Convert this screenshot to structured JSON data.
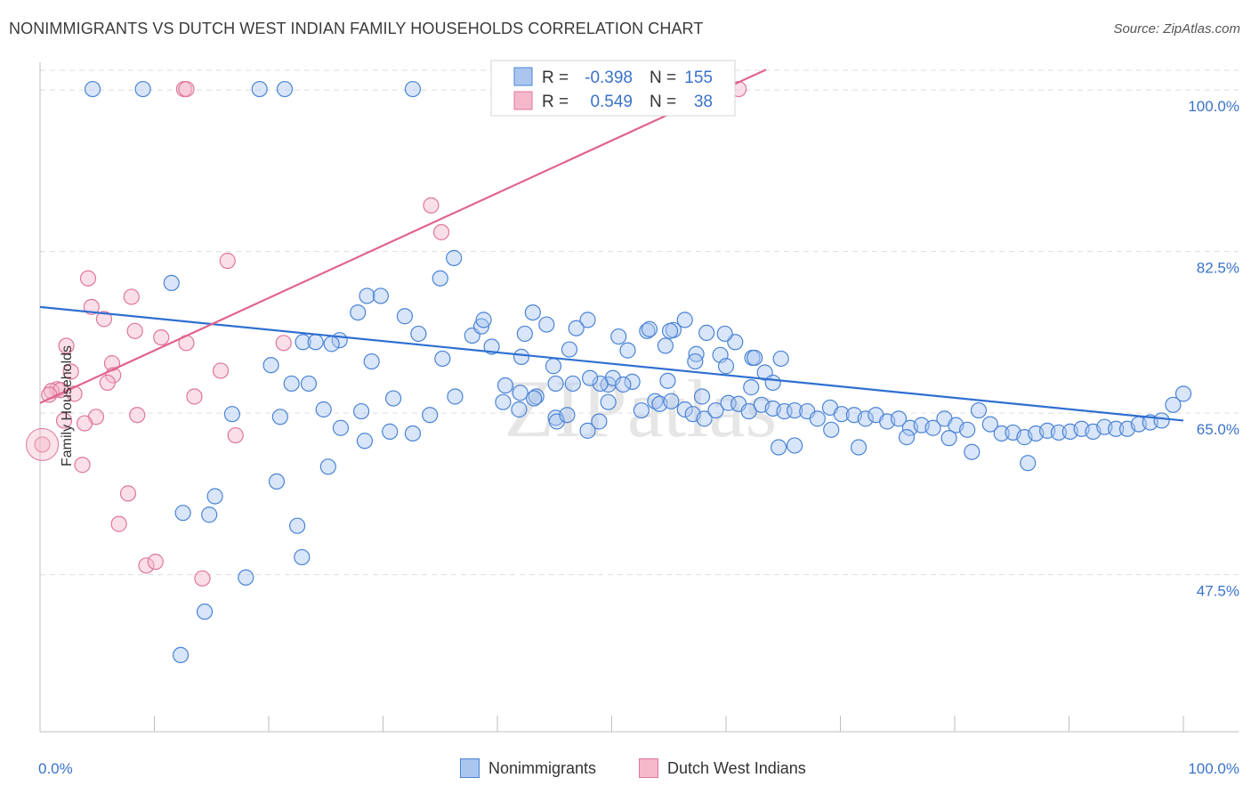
{
  "title": "NONIMMIGRANTS VS DUTCH WEST INDIAN FAMILY HOUSEHOLDS CORRELATION CHART",
  "source": "Source: ZipAtlas.com",
  "watermark": "ZIPatlas",
  "colors": {
    "blue": "#4a84d6",
    "blue_fill": "#aac6ef",
    "blue_line": "#2f6fd1",
    "pink": "#e0769a",
    "pink_fill": "#f5b8cb",
    "pink_line": "#e0648c",
    "axis_text": "#3a73c9",
    "grid": "#dddddd"
  },
  "legend": {
    "rows": [
      {
        "r_label": "R =",
        "r_value": "-0.398",
        "n_label": "N =",
        "n_value": "155"
      },
      {
        "r_label": "R =",
        "r_value": "0.549",
        "n_label": "N =",
        "n_value": "38"
      }
    ]
  },
  "bottom_legend": [
    "Nonimmigrants",
    "Dutch West Indians"
  ],
  "chart_data": {
    "type": "scatter",
    "title": "NONIMMIGRANTS VS DUTCH WEST INDIAN FAMILY HOUSEHOLDS CORRELATION CHART",
    "xlabel": "",
    "ylabel": "Family Households",
    "xlim": [
      0,
      100
    ],
    "ylim": [
      30.5,
      103
    ],
    "x_tick_labels": [
      "0.0%",
      "100.0%"
    ],
    "y_ticks": [
      100,
      82.5,
      65,
      47.5
    ],
    "y_tick_labels": [
      "100.0%",
      "82.5%",
      "65.0%",
      "47.5%"
    ],
    "series": [
      {
        "name": "Nonimmigrants",
        "r": -0.398,
        "n": 155,
        "trend": {
          "x": [
            0,
            100
          ],
          "y": [
            76.5,
            64.2
          ]
        },
        "points": [
          [
            4.6,
            100.1
          ],
          [
            9.0,
            100.1
          ],
          [
            19.2,
            100.1
          ],
          [
            21.4,
            100.1
          ],
          [
            32.6,
            100.1
          ],
          [
            11.5,
            79.1
          ],
          [
            35.0,
            79.6
          ],
          [
            36.2,
            81.8
          ],
          [
            28.6,
            77.7
          ],
          [
            29.8,
            77.7
          ],
          [
            27.8,
            75.9
          ],
          [
            31.9,
            75.5
          ],
          [
            26.2,
            72.9
          ],
          [
            23.0,
            72.7
          ],
          [
            24.1,
            72.7
          ],
          [
            25.5,
            72.5
          ],
          [
            29.0,
            70.6
          ],
          [
            33.1,
            73.6
          ],
          [
            37.8,
            73.4
          ],
          [
            38.6,
            74.4
          ],
          [
            35.2,
            70.9
          ],
          [
            38.8,
            75.1
          ],
          [
            39.5,
            72.2
          ],
          [
            42.4,
            73.6
          ],
          [
            43.1,
            75.9
          ],
          [
            44.3,
            74.6
          ],
          [
            42.1,
            71.1
          ],
          [
            41.9,
            65.4
          ],
          [
            47.9,
            75.1
          ],
          [
            46.9,
            74.2
          ],
          [
            46.6,
            68.2
          ],
          [
            49.7,
            68.1
          ],
          [
            50.6,
            73.3
          ],
          [
            53.1,
            73.9
          ],
          [
            55.4,
            74.0
          ],
          [
            56.4,
            75.1
          ],
          [
            54.7,
            72.3
          ],
          [
            59.5,
            71.3
          ],
          [
            60.0,
            70.1
          ],
          [
            57.9,
            66.8
          ],
          [
            51.8,
            68.4
          ],
          [
            54.9,
            68.5
          ],
          [
            62.3,
            71.0
          ],
          [
            63.4,
            69.4
          ],
          [
            64.1,
            68.3
          ],
          [
            64.8,
            70.9
          ],
          [
            62.2,
            67.8
          ],
          [
            60.8,
            72.7
          ],
          [
            62.5,
            71.0
          ],
          [
            59.9,
            73.6
          ],
          [
            57.4,
            71.4
          ],
          [
            58.3,
            73.7
          ],
          [
            57.3,
            70.6
          ],
          [
            55.1,
            73.9
          ],
          [
            53.3,
            74.1
          ],
          [
            51.4,
            71.8
          ],
          [
            50.1,
            68.8
          ],
          [
            49.0,
            68.2
          ],
          [
            48.1,
            68.8
          ],
          [
            46.3,
            71.9
          ],
          [
            45.1,
            68.2
          ],
          [
            44.9,
            70.1
          ],
          [
            43.4,
            66.8
          ],
          [
            42.0,
            67.2
          ],
          [
            40.7,
            68.0
          ],
          [
            45.1,
            64.5
          ],
          [
            36.3,
            66.8
          ],
          [
            30.9,
            66.6
          ],
          [
            23.5,
            68.2
          ],
          [
            22.0,
            68.2
          ],
          [
            20.2,
            70.2
          ],
          [
            16.8,
            64.9
          ],
          [
            21.0,
            64.6
          ],
          [
            24.8,
            65.4
          ],
          [
            26.3,
            63.4
          ],
          [
            28.4,
            62.0
          ],
          [
            28.1,
            65.2
          ],
          [
            30.6,
            63.0
          ],
          [
            34.1,
            64.8
          ],
          [
            32.6,
            62.8
          ],
          [
            40.5,
            66.2
          ],
          [
            43.2,
            66.6
          ],
          [
            45.2,
            64.1
          ],
          [
            46.1,
            64.8
          ],
          [
            47.9,
            63.1
          ],
          [
            48.9,
            64.1
          ],
          [
            49.7,
            66.2
          ],
          [
            51.0,
            68.1
          ],
          [
            52.6,
            65.3
          ],
          [
            53.8,
            66.3
          ],
          [
            54.2,
            66.0
          ],
          [
            55.2,
            66.3
          ],
          [
            56.4,
            65.4
          ],
          [
            57.1,
            64.9
          ],
          [
            58.1,
            64.4
          ],
          [
            59.1,
            65.3
          ],
          [
            60.2,
            66.1
          ],
          [
            61.1,
            66.0
          ],
          [
            62.0,
            65.2
          ],
          [
            63.1,
            65.9
          ],
          [
            64.1,
            65.5
          ],
          [
            65.1,
            65.2
          ],
          [
            66.0,
            65.3
          ],
          [
            67.1,
            65.2
          ],
          [
            68.0,
            64.4
          ],
          [
            69.1,
            65.6
          ],
          [
            70.1,
            64.9
          ],
          [
            71.2,
            64.8
          ],
          [
            72.2,
            64.4
          ],
          [
            73.1,
            64.8
          ],
          [
            74.1,
            64.1
          ],
          [
            75.1,
            64.4
          ],
          [
            76.1,
            63.4
          ],
          [
            77.1,
            63.7
          ],
          [
            78.1,
            63.4
          ],
          [
            79.1,
            64.4
          ],
          [
            80.1,
            63.7
          ],
          [
            81.1,
            63.2
          ],
          [
            82.1,
            65.3
          ],
          [
            83.1,
            63.8
          ],
          [
            84.1,
            62.8
          ],
          [
            85.1,
            62.9
          ],
          [
            86.1,
            62.4
          ],
          [
            87.1,
            62.8
          ],
          [
            88.1,
            63.1
          ],
          [
            89.1,
            62.9
          ],
          [
            90.1,
            63.0
          ],
          [
            91.1,
            63.3
          ],
          [
            92.1,
            63.0
          ],
          [
            93.1,
            63.5
          ],
          [
            94.1,
            63.3
          ],
          [
            95.1,
            63.3
          ],
          [
            96.1,
            63.8
          ],
          [
            97.1,
            64.0
          ],
          [
            98.1,
            64.2
          ],
          [
            99.1,
            65.9
          ],
          [
            100.0,
            67.1
          ],
          [
            81.5,
            60.8
          ],
          [
            86.4,
            59.6
          ],
          [
            79.5,
            62.3
          ],
          [
            75.8,
            62.4
          ],
          [
            71.6,
            61.3
          ],
          [
            66.0,
            61.5
          ],
          [
            64.6,
            61.3
          ],
          [
            69.2,
            63.2
          ],
          [
            25.2,
            59.2
          ],
          [
            20.7,
            57.6
          ],
          [
            15.3,
            56.0
          ],
          [
            12.5,
            54.2
          ],
          [
            14.8,
            54.0
          ],
          [
            22.5,
            52.8
          ],
          [
            22.9,
            49.4
          ],
          [
            18.0,
            47.2
          ],
          [
            14.4,
            43.5
          ],
          [
            12.3,
            38.8
          ]
        ]
      },
      {
        "name": "Dutch West Indians",
        "r": 0.549,
        "n": 38,
        "trend": {
          "x": [
            0,
            63.5
          ],
          "y": [
            66.1,
            102.2
          ]
        },
        "points": [
          [
            12.6,
            100.1
          ],
          [
            12.8,
            100.1
          ],
          [
            61.1,
            100.1
          ],
          [
            34.2,
            87.5
          ],
          [
            35.1,
            84.6
          ],
          [
            16.4,
            81.5
          ],
          [
            4.2,
            79.6
          ],
          [
            8.0,
            77.6
          ],
          [
            4.5,
            76.5
          ],
          [
            5.6,
            75.2
          ],
          [
            8.3,
            73.9
          ],
          [
            10.6,
            73.2
          ],
          [
            12.8,
            72.6
          ],
          [
            21.3,
            72.6
          ],
          [
            2.3,
            72.3
          ],
          [
            6.3,
            70.4
          ],
          [
            6.4,
            69.1
          ],
          [
            2.7,
            69.5
          ],
          [
            15.8,
            69.6
          ],
          [
            5.9,
            68.3
          ],
          [
            1.5,
            67.6
          ],
          [
            1.0,
            67.4
          ],
          [
            1.8,
            67.5
          ],
          [
            0.8,
            67.0
          ],
          [
            3.0,
            67.1
          ],
          [
            13.5,
            66.8
          ],
          [
            2.1,
            64.2
          ],
          [
            4.9,
            64.6
          ],
          [
            8.5,
            64.8
          ],
          [
            3.9,
            63.9
          ],
          [
            17.1,
            62.6
          ],
          [
            0.2,
            61.6
          ],
          [
            3.7,
            59.4
          ],
          [
            7.7,
            56.3
          ],
          [
            6.9,
            53.0
          ],
          [
            14.2,
            47.1
          ],
          [
            9.3,
            48.5
          ],
          [
            10.1,
            48.9
          ]
        ]
      }
    ]
  }
}
